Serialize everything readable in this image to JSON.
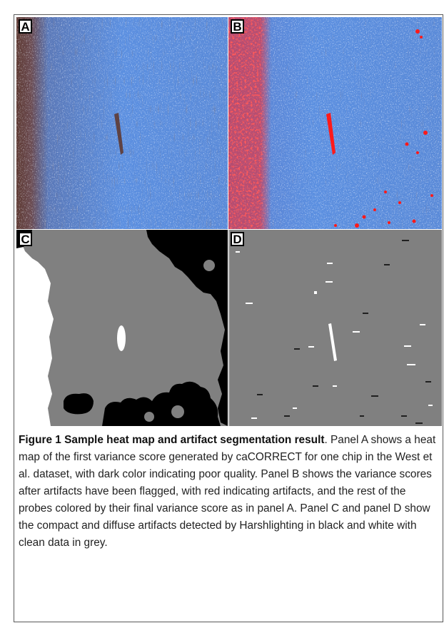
{
  "panels": {
    "a": {
      "label": "A"
    },
    "b": {
      "label": "B"
    },
    "c": {
      "label": "C"
    },
    "d": {
      "label": "D"
    }
  },
  "caption": {
    "title": "Figure 1 Sample heat map and artifact segmentation result",
    "title_end": ".",
    "body": "Panel A shows a heat map of the first variance score generated by caCORRECT for one chip in the West et al. dataset, with dark color indicating poor quality. Panel B shows the variance scores after artifacts have been flagged, with red indicating artifacts, and the rest of the probes colored by their final variance score as in panel A. Panel C and panel D show the compact and diffuse artifacts detected by Harshlighting in black and white with clean data in grey."
  },
  "colors": {
    "heat_good": "#5b8fe0",
    "heat_poor": "#5e3a33",
    "artifact": "#ff1a1a",
    "clean": "#808080",
    "compact": "#000000",
    "diffuse": "#ffffff"
  }
}
